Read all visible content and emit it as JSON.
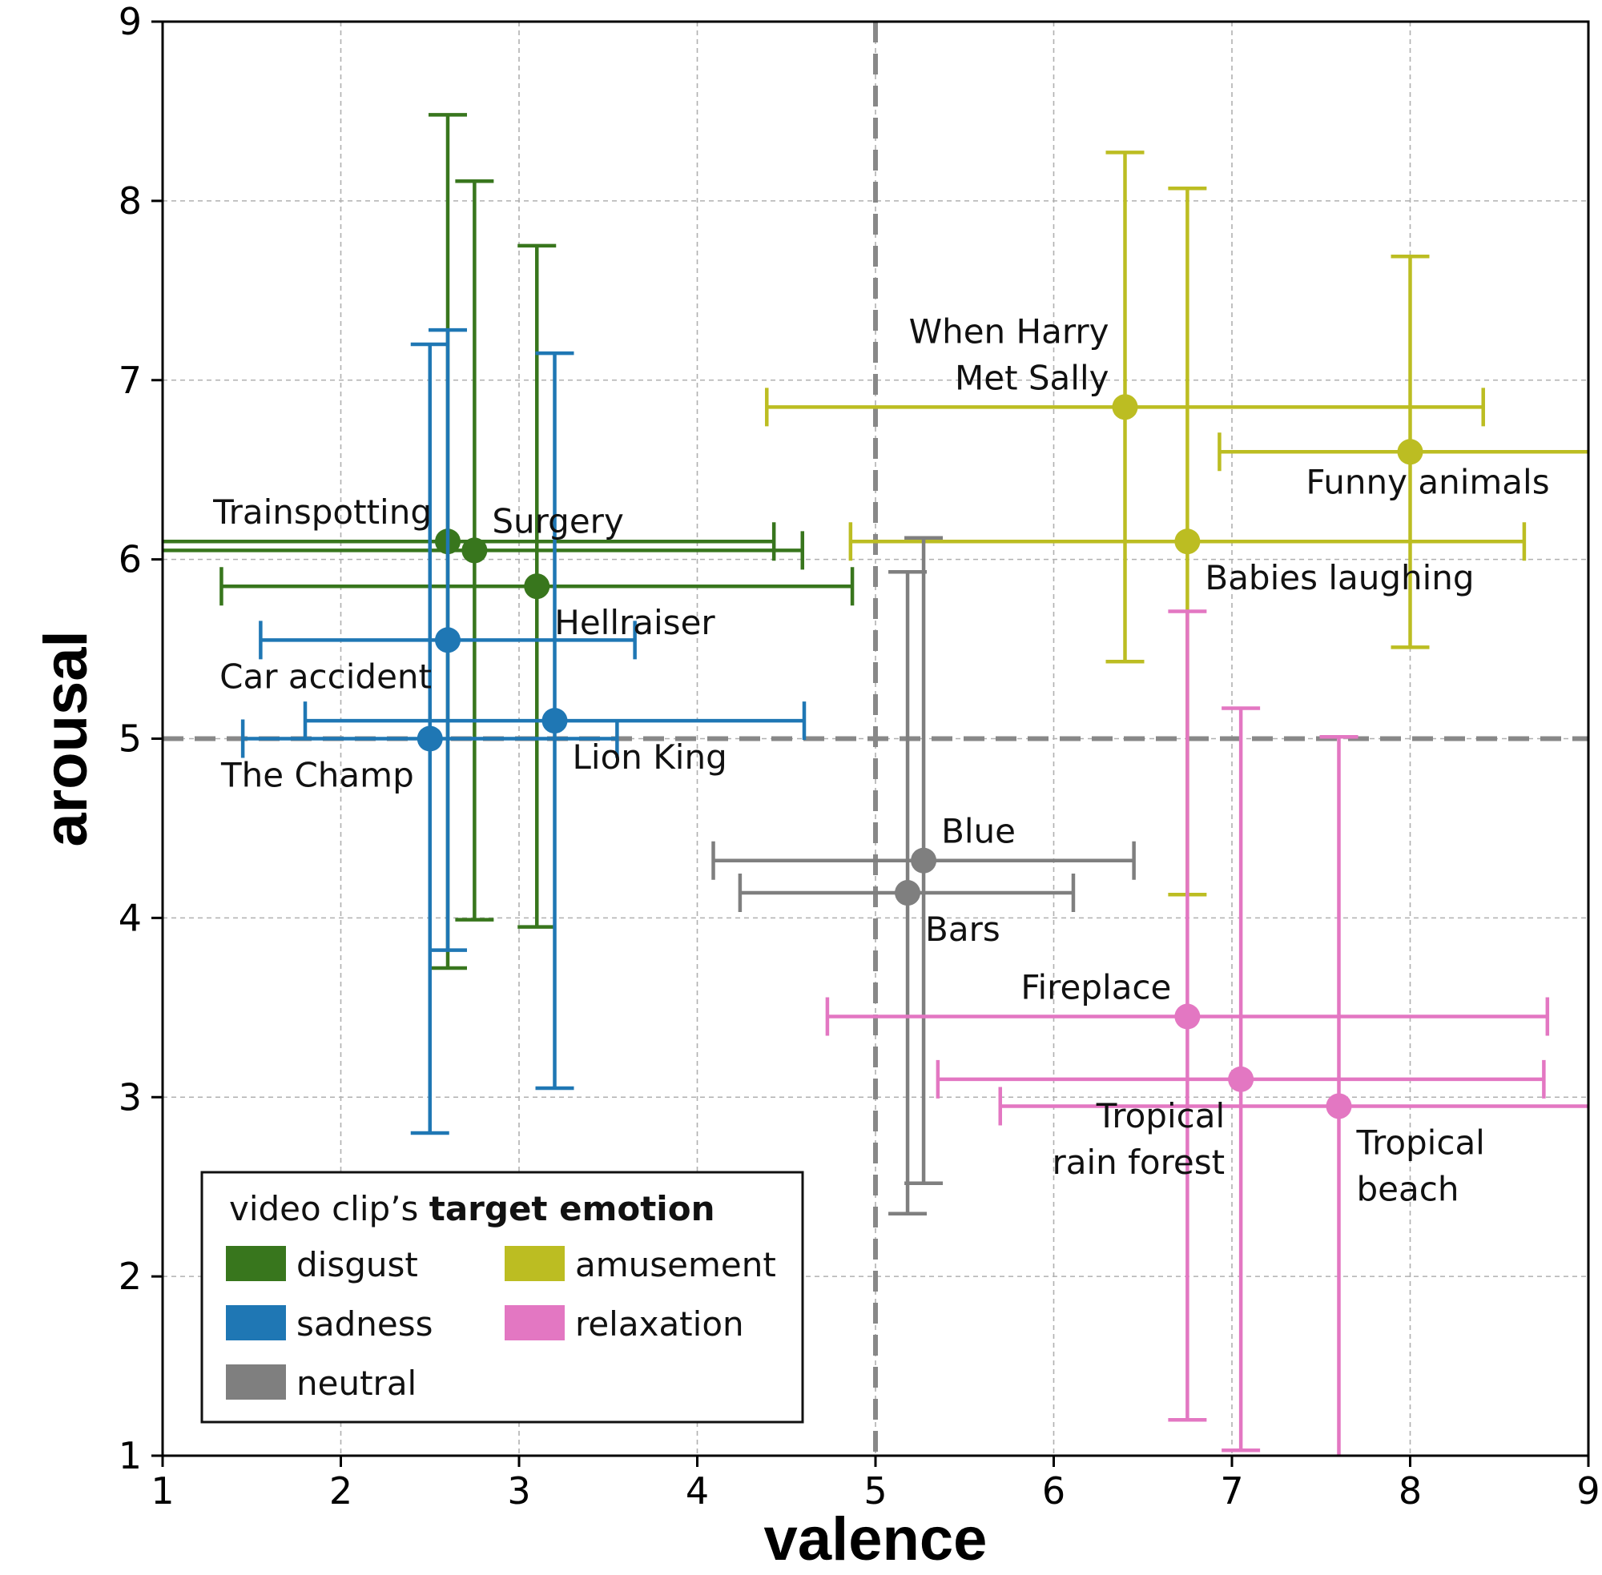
{
  "chart_data": {
    "type": "scatter",
    "xlabel": "valence",
    "ylabel": "arousal",
    "xlim": [
      1,
      9
    ],
    "ylim": [
      1,
      9
    ],
    "xticks": [
      1,
      2,
      3,
      4,
      5,
      6,
      7,
      8,
      9
    ],
    "yticks": [
      1,
      2,
      3,
      4,
      5,
      6,
      7,
      8,
      9
    ],
    "grid": true,
    "reference_lines": {
      "x": 5,
      "y": 5
    },
    "colors": {
      "disgust": "#38761d",
      "sadness": "#1f77b4",
      "neutral": "#7f7f7f",
      "amusement": "#bcbd22",
      "relaxation": "#e377c2"
    },
    "legend": {
      "position": "bottom-left",
      "title_prefix": "video clip’s ",
      "title_bold": "target emotion",
      "entries": [
        {
          "name": "disgust",
          "label": "disgust"
        },
        {
          "name": "amusement",
          "label": "amusement"
        },
        {
          "name": "sadness",
          "label": "sadness"
        },
        {
          "name": "relaxation",
          "label": "relaxation"
        },
        {
          "name": "neutral",
          "label": "neutral"
        }
      ]
    },
    "points": [
      {
        "id": "trainspotting",
        "label": [
          "Trainspotting"
        ],
        "emotion": "disgust",
        "x": 2.6,
        "y": 6.1,
        "xerr": [
          1.0,
          4.43
        ],
        "yerr": [
          3.72,
          8.48
        ],
        "label_anchor": "end",
        "label_pos": "upper-left"
      },
      {
        "id": "surgery",
        "label": [
          "Surgery"
        ],
        "emotion": "disgust",
        "x": 2.75,
        "y": 6.05,
        "xerr": [
          1.0,
          4.59
        ],
        "yerr": [
          3.99,
          8.11
        ],
        "label_anchor": "start",
        "label_pos": "upper-right"
      },
      {
        "id": "hellraiser",
        "label": [
          "Hellraiser"
        ],
        "emotion": "disgust",
        "x": 3.1,
        "y": 5.85,
        "xerr": [
          1.33,
          4.87
        ],
        "yerr": [
          3.95,
          7.75
        ],
        "label_anchor": "start",
        "label_pos": "lower-right"
      },
      {
        "id": "car-accident",
        "label": [
          "Car accident"
        ],
        "emotion": "sadness",
        "x": 2.6,
        "y": 5.55,
        "xerr": [
          1.55,
          3.65
        ],
        "yerr": [
          3.82,
          7.28
        ],
        "label_anchor": "end",
        "label_pos": "lower-left"
      },
      {
        "id": "lion-king",
        "label": [
          "Lion King"
        ],
        "emotion": "sadness",
        "x": 3.2,
        "y": 5.1,
        "xerr": [
          1.8,
          4.6
        ],
        "yerr": [
          3.05,
          7.15
        ],
        "label_anchor": "start",
        "label_pos": "lower-right"
      },
      {
        "id": "the-champ",
        "label": [
          "The Champ"
        ],
        "emotion": "sadness",
        "x": 2.5,
        "y": 5.0,
        "xerr": [
          1.45,
          3.55
        ],
        "yerr": [
          2.8,
          7.2
        ],
        "label_anchor": "end",
        "label_pos": "lower-left"
      },
      {
        "id": "when-harry-met-sally",
        "label": [
          "When Harry",
          "Met Sally"
        ],
        "emotion": "amusement",
        "x": 6.4,
        "y": 6.85,
        "xerr": [
          4.39,
          8.41
        ],
        "yerr": [
          5.43,
          8.27
        ],
        "label_anchor": "end",
        "label_pos": "upper-left"
      },
      {
        "id": "funny-animals",
        "label": [
          "Funny animals"
        ],
        "emotion": "amusement",
        "x": 8.0,
        "y": 6.6,
        "xerr": [
          6.93,
          9.0
        ],
        "yerr": [
          5.51,
          7.69
        ],
        "label_anchor": "middle",
        "label_pos": "below"
      },
      {
        "id": "babies-laughing",
        "label": [
          "Babies laughing"
        ],
        "emotion": "amusement",
        "x": 6.75,
        "y": 6.1,
        "xerr": [
          4.86,
          8.64
        ],
        "yerr": [
          4.13,
          8.07
        ],
        "label_anchor": "start",
        "label_pos": "lower-right"
      },
      {
        "id": "blue",
        "label": [
          "Blue"
        ],
        "emotion": "neutral",
        "x": 5.27,
        "y": 4.32,
        "xerr": [
          4.09,
          6.45
        ],
        "yerr": [
          2.52,
          6.12
        ],
        "label_anchor": "start",
        "label_pos": "upper-right"
      },
      {
        "id": "bars",
        "label": [
          "Bars"
        ],
        "emotion": "neutral",
        "x": 5.18,
        "y": 4.14,
        "xerr": [
          4.24,
          6.11
        ],
        "yerr": [
          2.35,
          5.93
        ],
        "label_anchor": "start",
        "label_pos": "lower-right"
      },
      {
        "id": "fireplace",
        "label": [
          "Fireplace"
        ],
        "emotion": "relaxation",
        "x": 6.75,
        "y": 3.45,
        "xerr": [
          4.73,
          8.77
        ],
        "yerr": [
          1.2,
          5.71
        ],
        "label_anchor": "end",
        "label_pos": "upper-left"
      },
      {
        "id": "tropical-rain-forest",
        "label": [
          "Tropical",
          "rain forest"
        ],
        "emotion": "relaxation",
        "x": 7.05,
        "y": 3.1,
        "xerr": [
          5.35,
          8.75
        ],
        "yerr": [
          1.03,
          5.17
        ],
        "label_anchor": "end",
        "label_pos": "lower-left"
      },
      {
        "id": "tropical-beach",
        "label": [
          "Tropical",
          "beach"
        ],
        "emotion": "relaxation",
        "x": 7.6,
        "y": 2.95,
        "xerr": [
          5.7,
          9.0
        ],
        "yerr": [
          1.0,
          5.01
        ],
        "label_anchor": "start",
        "label_pos": "lower-right"
      }
    ]
  }
}
